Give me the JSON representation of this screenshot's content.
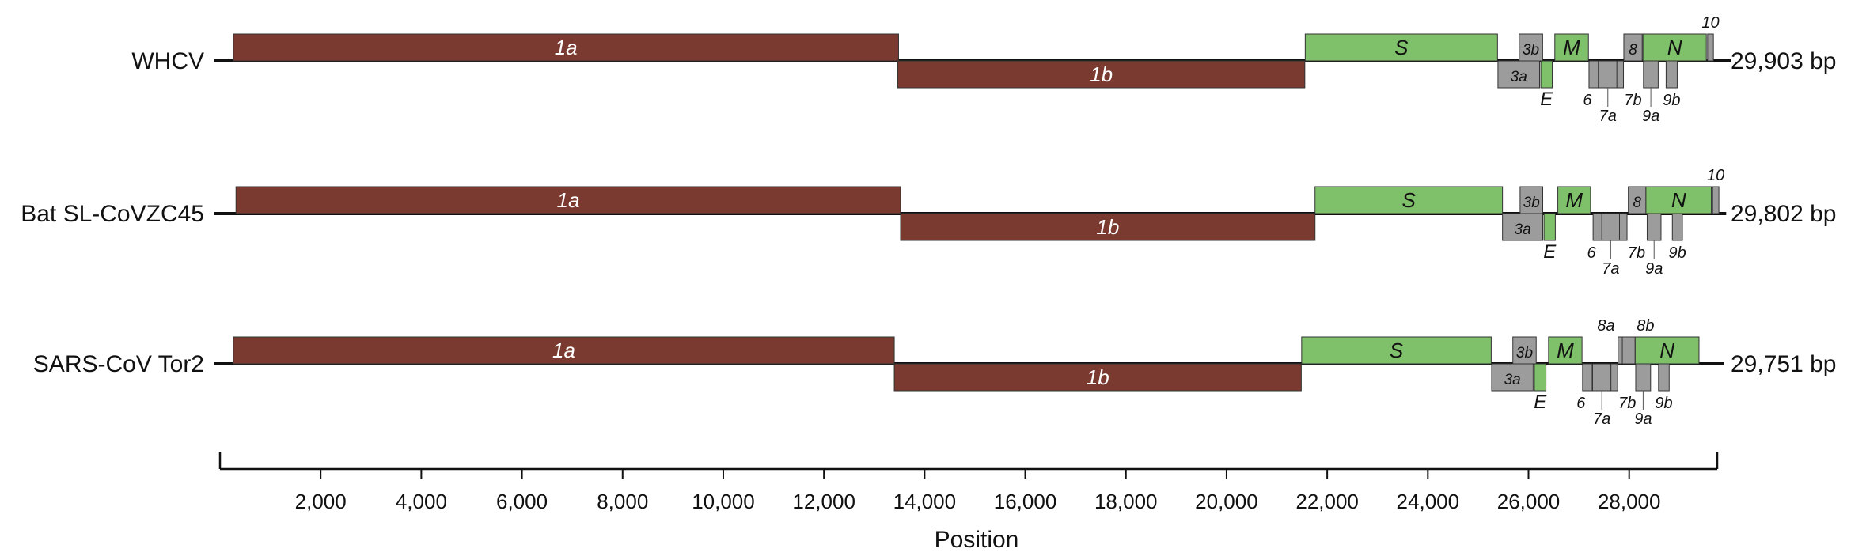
{
  "colors": {
    "orf1": "#7a3a2f",
    "structural": "#7fc06a",
    "accessory": "#9c9c9c",
    "outline": "#333333",
    "genome_line": "#111111"
  },
  "chart_data": {
    "type": "genome-map",
    "xlabel": "Position",
    "xlim": [
      0,
      29903
    ],
    "x_ticks": [
      2000,
      4000,
      6000,
      8000,
      10000,
      12000,
      14000,
      16000,
      18000,
      20000,
      22000,
      24000,
      26000,
      28000
    ],
    "x_tick_labels": [
      "2,000",
      "4,000",
      "6,000",
      "8,000",
      "10,000",
      "12,000",
      "14,000",
      "16,000",
      "18,000",
      "20,000",
      "22,000",
      "24,000",
      "26,000",
      "28,000"
    ],
    "genomes": [
      {
        "name": "WHCV",
        "length_label": "29,903 bp",
        "length": 29903,
        "genes": [
          {
            "name": "1a",
            "start": 266,
            "end": 13483,
            "kind": "orf1",
            "strand": "top"
          },
          {
            "name": "1b",
            "start": 13468,
            "end": 21555,
            "kind": "orf1",
            "strand": "bottom"
          },
          {
            "name": "S",
            "start": 21563,
            "end": 25384,
            "kind": "structural",
            "strand": "top"
          },
          {
            "name": "3b",
            "start": 25814,
            "end": 26281,
            "kind": "accessory",
            "strand": "top"
          },
          {
            "name": "M",
            "start": 26523,
            "end": 27191,
            "kind": "structural",
            "strand": "top"
          },
          {
            "name": "8",
            "start": 27894,
            "end": 28259,
            "kind": "accessory",
            "strand": "top"
          },
          {
            "name": "N",
            "start": 28274,
            "end": 29533,
            "kind": "structural",
            "strand": "top"
          },
          {
            "name": "10",
            "start": 29558,
            "end": 29674,
            "kind": "accessory",
            "strand": "top"
          },
          {
            "name": "3a",
            "start": 25393,
            "end": 26220,
            "kind": "accessory",
            "strand": "bottom"
          },
          {
            "name": "E",
            "start": 26245,
            "end": 26472,
            "kind": "structural",
            "strand": "bottom"
          },
          {
            "name": "6",
            "start": 27202,
            "end": 27387,
            "kind": "accessory",
            "strand": "bottom"
          },
          {
            "name": "7a",
            "start": 27394,
            "end": 27759,
            "kind": "accessory",
            "strand": "bottom"
          },
          {
            "name": "7b",
            "start": 27756,
            "end": 27887,
            "kind": "accessory",
            "strand": "bottom"
          },
          {
            "name": "9a",
            "start": 28284,
            "end": 28577,
            "kind": "accessory",
            "strand": "bottom"
          },
          {
            "name": "9b",
            "start": 28734,
            "end": 28955,
            "kind": "accessory",
            "strand": "bottom"
          }
        ],
        "labels_below": [
          "E",
          "6",
          "7b",
          "7a",
          "9a",
          "9b"
        ]
      },
      {
        "name": "Bat SL-CoVZC45",
        "length_label": "29,802 bp",
        "length": 29802,
        "genes": [
          {
            "name": "1a",
            "start": 318,
            "end": 13523,
            "kind": "orf1",
            "strand": "top"
          },
          {
            "name": "1b",
            "start": 13523,
            "end": 21758,
            "kind": "orf1",
            "strand": "bottom"
          },
          {
            "name": "S",
            "start": 21758,
            "end": 25483,
            "kind": "structural",
            "strand": "top"
          },
          {
            "name": "3b",
            "start": 25833,
            "end": 26283,
            "kind": "accessory",
            "strand": "top"
          },
          {
            "name": "M",
            "start": 26583,
            "end": 27233,
            "kind": "structural",
            "strand": "top"
          },
          {
            "name": "8",
            "start": 27983,
            "end": 28333,
            "kind": "accessory",
            "strand": "top"
          },
          {
            "name": "N",
            "start": 28333,
            "end": 29633,
            "kind": "structural",
            "strand": "top"
          },
          {
            "name": "10",
            "start": 29658,
            "end": 29783,
            "kind": "accessory",
            "strand": "top"
          },
          {
            "name": "3a",
            "start": 25483,
            "end": 26283,
            "kind": "accessory",
            "strand": "bottom"
          },
          {
            "name": "E",
            "start": 26308,
            "end": 26533,
            "kind": "structural",
            "strand": "bottom"
          },
          {
            "name": "6",
            "start": 27283,
            "end": 27458,
            "kind": "accessory",
            "strand": "bottom"
          },
          {
            "name": "7a",
            "start": 27458,
            "end": 27808,
            "kind": "accessory",
            "strand": "bottom"
          },
          {
            "name": "7b",
            "start": 27808,
            "end": 27958,
            "kind": "accessory",
            "strand": "bottom"
          },
          {
            "name": "9a",
            "start": 28358,
            "end": 28633,
            "kind": "accessory",
            "strand": "bottom"
          },
          {
            "name": "9b",
            "start": 28858,
            "end": 29058,
            "kind": "accessory",
            "strand": "bottom"
          }
        ],
        "labels_below": [
          "E",
          "6",
          "7b",
          "7a",
          "9a",
          "9b"
        ]
      },
      {
        "name": "SARS-CoV Tor2",
        "length_label": "29,751 bp",
        "length": 29751,
        "genes": [
          {
            "name": "1a",
            "start": 265,
            "end": 13398,
            "kind": "orf1",
            "strand": "top"
          },
          {
            "name": "1b",
            "start": 13398,
            "end": 21485,
            "kind": "orf1",
            "strand": "bottom"
          },
          {
            "name": "S",
            "start": 21492,
            "end": 25259,
            "kind": "structural",
            "strand": "top"
          },
          {
            "name": "3b",
            "start": 25689,
            "end": 26153,
            "kind": "accessory",
            "strand": "top"
          },
          {
            "name": "M",
            "start": 26398,
            "end": 27063,
            "kind": "structural",
            "strand": "top"
          },
          {
            "name": "8a",
            "start": 27779,
            "end": 27898,
            "kind": "accessory",
            "strand": "top"
          },
          {
            "name": "8b",
            "start": 27864,
            "end": 28118,
            "kind": "accessory",
            "strand": "top"
          },
          {
            "name": "N",
            "start": 28120,
            "end": 29388,
            "kind": "structural",
            "strand": "top"
          },
          {
            "name": "3a",
            "start": 25268,
            "end": 26092,
            "kind": "accessory",
            "strand": "bottom"
          },
          {
            "name": "E",
            "start": 26117,
            "end": 26347,
            "kind": "structural",
            "strand": "bottom"
          },
          {
            "name": "6",
            "start": 27074,
            "end": 27265,
            "kind": "accessory",
            "strand": "bottom"
          },
          {
            "name": "7a",
            "start": 27273,
            "end": 27641,
            "kind": "accessory",
            "strand": "bottom"
          },
          {
            "name": "7b",
            "start": 27638,
            "end": 27772,
            "kind": "accessory",
            "strand": "bottom"
          },
          {
            "name": "9a",
            "start": 28130,
            "end": 28426,
            "kind": "accessory",
            "strand": "bottom"
          },
          {
            "name": "9b",
            "start": 28583,
            "end": 28795,
            "kind": "accessory",
            "strand": "bottom"
          }
        ],
        "labels_below": [
          "E",
          "6",
          "7b",
          "7a",
          "9a",
          "9b"
        ]
      }
    ]
  }
}
